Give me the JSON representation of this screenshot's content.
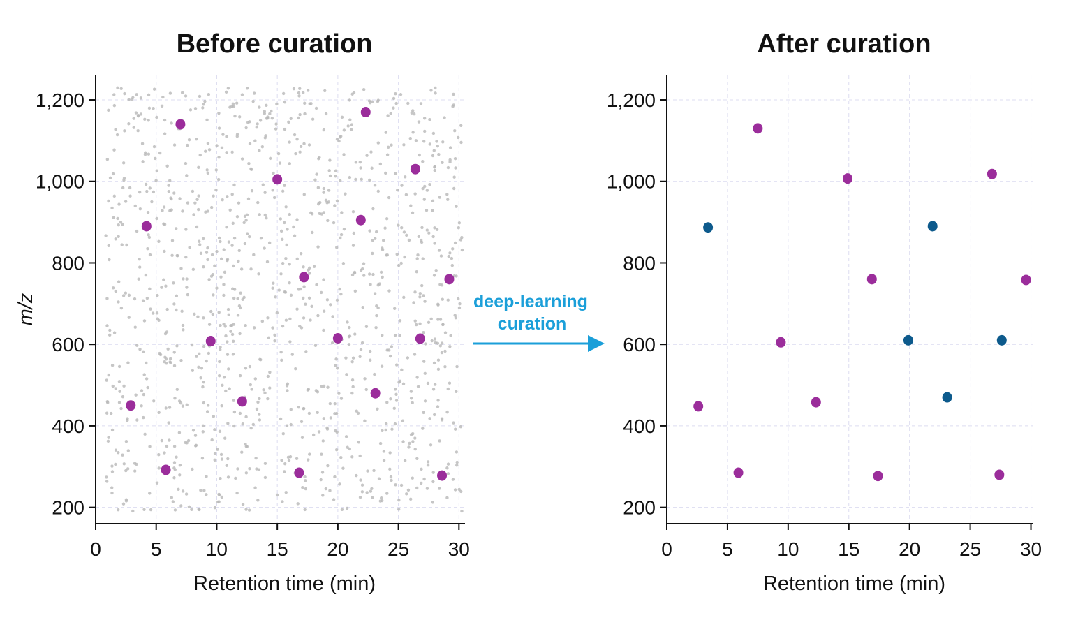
{
  "arrow": {
    "label_lines": [
      "deep-learning",
      "curation"
    ],
    "color": "#1b9fd9"
  },
  "colors": {
    "noise": "#b8b8b8",
    "highlight_magenta": "#9b2d9b",
    "highlight_blue": "#0d5a8c",
    "axis": "#111111",
    "grid": "#dcdcf0"
  },
  "chart_data": [
    {
      "type": "scatter",
      "title": "Before curation",
      "xlabel": "Retention time (min)",
      "ylabel": "m/z",
      "xlim": [
        0,
        30.5
      ],
      "ylim": [
        160,
        1260
      ],
      "xticks": [
        0,
        5,
        10,
        15,
        20,
        25,
        30
      ],
      "yticks": [
        200,
        400,
        600,
        800,
        1000,
        1200
      ],
      "ytick_labels": [
        "200",
        "400",
        "600",
        "800",
        "1,000",
        "1,200"
      ],
      "grid": true,
      "noise_background": {
        "description_count": 1200,
        "x_range": [
          0.8,
          30.3
        ],
        "y_range": [
          190,
          1230
        ],
        "color": "#b8b8b8"
      },
      "series": [
        {
          "color": "#9b2d9b",
          "points": [
            [
              7.0,
              1140
            ],
            [
              22.3,
              1170
            ],
            [
              15.0,
              1005
            ],
            [
              26.4,
              1030
            ],
            [
              4.2,
              890
            ],
            [
              21.9,
              905
            ],
            [
              17.2,
              765
            ],
            [
              29.2,
              760
            ],
            [
              9.5,
              608
            ],
            [
              20.0,
              615
            ],
            [
              26.8,
              614
            ],
            [
              2.9,
              450
            ],
            [
              12.1,
              460
            ],
            [
              23.1,
              480
            ],
            [
              5.8,
              292
            ],
            [
              16.8,
              285
            ],
            [
              28.6,
              278
            ]
          ]
        }
      ]
    },
    {
      "type": "scatter",
      "title": "After curation",
      "xlabel": "Retention time (min)",
      "ylabel": "",
      "xlim": [
        0,
        30.2
      ],
      "ylim": [
        160,
        1260
      ],
      "xticks": [
        0,
        5,
        10,
        15,
        20,
        25,
        30
      ],
      "yticks": [
        200,
        400,
        600,
        800,
        1000,
        1200
      ],
      "ytick_labels": [
        "200",
        "400",
        "600",
        "800",
        "1,000",
        "1,200"
      ],
      "grid": true,
      "series": [
        {
          "color": "#9b2d9b",
          "points": [
            [
              7.5,
              1130
            ],
            [
              14.9,
              1007
            ],
            [
              26.8,
              1018
            ],
            [
              16.9,
              760
            ],
            [
              29.6,
              758
            ],
            [
              9.4,
              605
            ],
            [
              2.6,
              448
            ],
            [
              12.3,
              458
            ],
            [
              5.9,
              285
            ],
            [
              17.4,
              277
            ],
            [
              27.4,
              280
            ]
          ]
        },
        {
          "color": "#0d5a8c",
          "points": [
            [
              3.4,
              887
            ],
            [
              21.9,
              890
            ],
            [
              19.9,
              610
            ],
            [
              27.6,
              610
            ],
            [
              23.1,
              470
            ]
          ]
        }
      ]
    }
  ]
}
